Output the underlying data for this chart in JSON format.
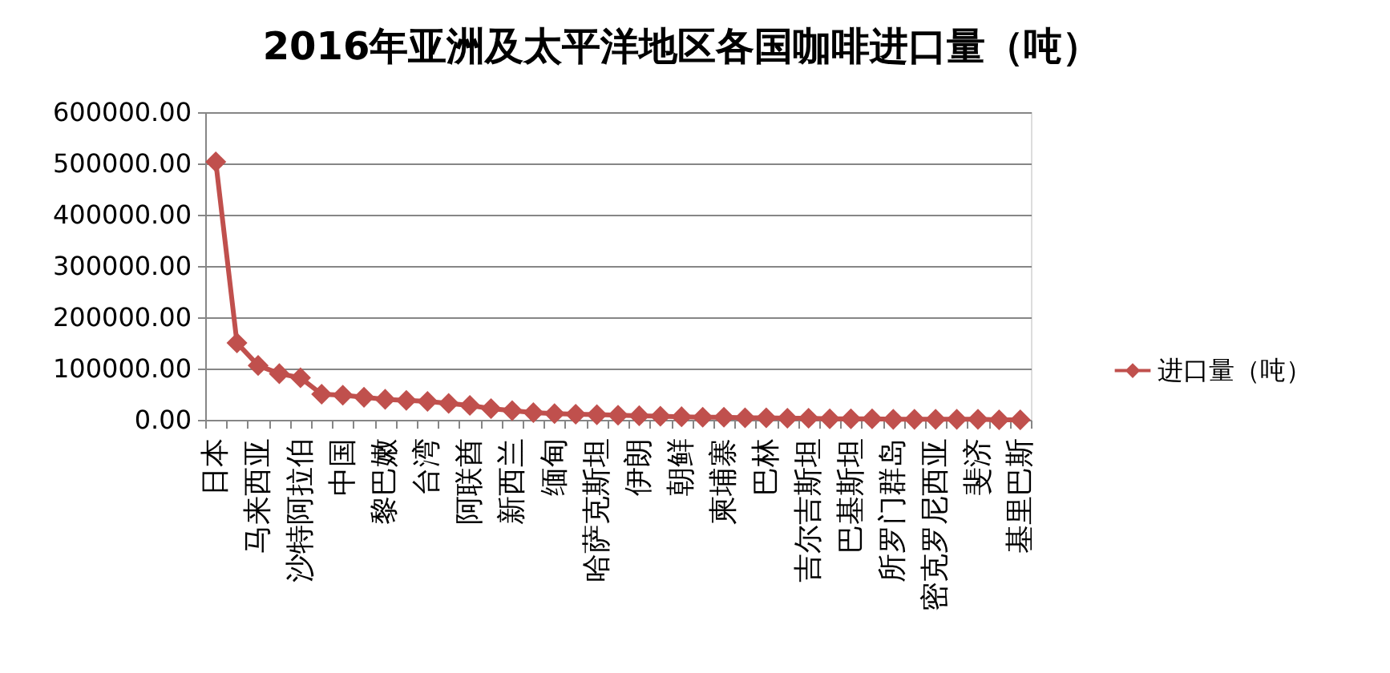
{
  "chart_data": {
    "type": "line",
    "title": "2016年亚洲及太平洋地区各国咖啡进口量（吨）",
    "categories": [
      "日本",
      null,
      "马来西亚",
      null,
      "沙特阿拉伯",
      null,
      "中国",
      null,
      "黎巴嫩",
      null,
      "台湾",
      null,
      "阿联酋",
      null,
      "新西兰",
      null,
      "缅甸",
      null,
      "哈萨克斯坦",
      null,
      "伊朗",
      null,
      "朝鲜",
      null,
      "柬埔寨",
      null,
      "巴林",
      null,
      "吉尔吉斯坦",
      null,
      "巴基斯坦",
      null,
      "所罗门群岛",
      null,
      "密克罗尼西亚",
      null,
      "斐济",
      null,
      "基里巴斯"
    ],
    "series": [
      {
        "name": "进口量（吨）",
        "color": "#c0504d",
        "values": [
          503000,
          150000,
          106000,
          90000,
          82000,
          50000,
          48000,
          44000,
          40000,
          38000,
          36000,
          32000,
          28000,
          22000,
          18000,
          14000,
          12000,
          11000,
          10000,
          9000,
          8000,
          7000,
          6000,
          5000,
          5000,
          4000,
          4000,
          3000,
          3000,
          2000,
          2000,
          2000,
          1000,
          1000,
          1000,
          1000,
          1000,
          0,
          0
        ]
      }
    ],
    "ylim": [
      0,
      600000
    ],
    "yticks": [
      {
        "value": 0,
        "label": "0.00"
      },
      {
        "value": 100000,
        "label": "100000.00"
      },
      {
        "value": 200000,
        "label": "200000.00"
      },
      {
        "value": 300000,
        "label": "300000.00"
      },
      {
        "value": 400000,
        "label": "400000.00"
      },
      {
        "value": 500000,
        "label": "500000.00"
      },
      {
        "value": 600000,
        "label": "600000.00"
      }
    ],
    "grid": "y",
    "legend": "right",
    "marker": "diamond",
    "line_style": "solid"
  }
}
